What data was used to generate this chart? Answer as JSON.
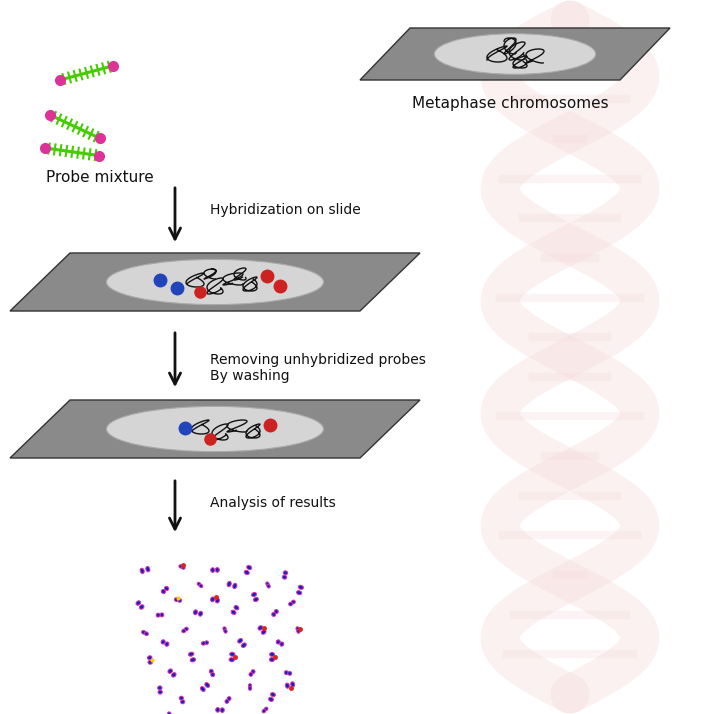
{
  "background_color": "#ffffff",
  "slide_color": "#8a8a8a",
  "oval_color": "#d5d5d5",
  "probe_green": "#44cc00",
  "probe_pink": "#dd3399",
  "probe_blue": "#2244bb",
  "probe_red": "#cc2222",
  "text_color": "#111111",
  "label_probe": "Probe mixture",
  "label_meta": "Metaphase chromosomes",
  "label_hybridization": "Hybridization on slide",
  "label_washing": "Removing unhybridized probes\nBy washing",
  "label_analysis": "Analysis of results",
  "font_size_labels": 11,
  "font_size_steps": 10,
  "helix_color": "#f5d8d8",
  "helix_alpha": 0.35
}
